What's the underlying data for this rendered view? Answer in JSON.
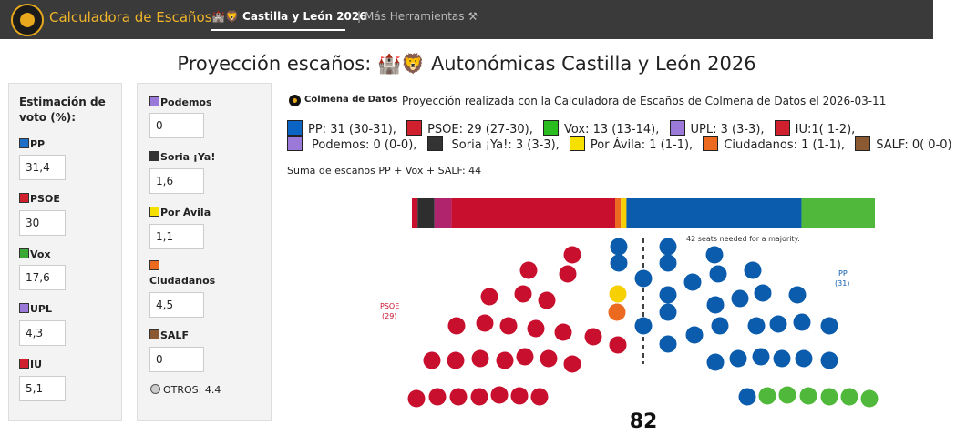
{
  "topbar": {
    "brand": "Calculadora de Escaños",
    "nav_active": "🏰🦁 Castilla y León 2026",
    "nav_sep": "|",
    "nav_more": "Más Herramientas ⚒",
    "bg": "#3a3a3a",
    "brand_color": "#f0b52a"
  },
  "title": "Proyección escaños: 🏰🦁 Autonómicas Castilla y León 2026",
  "left_panel": {
    "heading": "Estimación de voto (%):",
    "parties": [
      {
        "name": "PP",
        "value": "31,4",
        "color": "#1f6fc7"
      },
      {
        "name": "PSOE",
        "value": "30",
        "color": "#d0202e"
      },
      {
        "name": "Vox",
        "value": "17,6",
        "color": "#3aa935"
      },
      {
        "name": "UPL",
        "value": "4,3",
        "color": "#9a79d9"
      },
      {
        "name": "IU",
        "value": "5,1",
        "color": "#d0202e"
      }
    ]
  },
  "mid_panel": {
    "parties": [
      {
        "name": "Podemos",
        "value": "0",
        "color": "#9a79d9"
      },
      {
        "name": "Soria ¡Ya!",
        "value": "1,6",
        "color": "#333333"
      },
      {
        "name": "Por Ávila",
        "value": "1,1",
        "color": "#f6e000"
      },
      {
        "name": "Ciudadanos",
        "value": "4,5",
        "color": "#eb6a1f"
      },
      {
        "name": "SALF",
        "value": "0",
        "color": "#8c5a32"
      }
    ],
    "otros": "OTROS: 4.4"
  },
  "colmena": "Colmena de Datos",
  "info": "Proyección realizada con la Calculadora de Escaños de Colmena de Datos el 2026-03-11",
  "legend": {
    "line1": [
      {
        "text": "PP: 31 (30-31),",
        "color": "#0b63c4"
      },
      {
        "text": "PSOE: 29 (27-30),",
        "color": "#d0202e"
      },
      {
        "text": "Vox: 13 (13-14),",
        "color": "#2bbd20"
      },
      {
        "text": "UPL: 3 (3-3),",
        "color": "#9a79d9"
      },
      {
        "text": "IU:1( 1-2),",
        "color": "#d0202e"
      }
    ],
    "line2": [
      {
        "text": "Podemos: 0 (0-0),",
        "color": "#9a79d9"
      },
      {
        "text": "Soria ¡Ya!: 3 (3-3),",
        "color": "#333333"
      },
      {
        "text": "Por Ávila: 1 (1-1),",
        "color": "#f6e000"
      },
      {
        "text": "Ciudadanos: 1 (1-1),",
        "color": "#eb6a1f"
      },
      {
        "text": "SALF: 0( 0-0)",
        "color": "#8c5a32"
      }
    ]
  },
  "suma": "Suma de escaños PP + Vox + SALF: 44",
  "chart_data": {
    "type": "bar",
    "total_seats": "82",
    "majority_note": "42 seats needed for a majority.",
    "label_left": {
      "name": "PSOE",
      "count": "(29)"
    },
    "label_right": {
      "name": "PP",
      "count": "(31)"
    },
    "segments": [
      {
        "party": "IU",
        "seats": 1,
        "color": "#c8102e"
      },
      {
        "party": "Soria ¡Ya!",
        "seats": 3,
        "color": "#2e2e2e"
      },
      {
        "party": "UPL",
        "seats": 3,
        "color": "#b0246e"
      },
      {
        "party": "PSOE",
        "seats": 29,
        "color": "#c8102e"
      },
      {
        "party": "Ciudadanos",
        "seats": 1,
        "color": "#eb6a1f"
      },
      {
        "party": "Por Ávila",
        "seats": 1,
        "color": "#f6d000"
      },
      {
        "party": "PP",
        "seats": 31,
        "color": "#0b5cad"
      },
      {
        "party": "Vox",
        "seats": 13,
        "color": "#50b83a"
      }
    ]
  }
}
